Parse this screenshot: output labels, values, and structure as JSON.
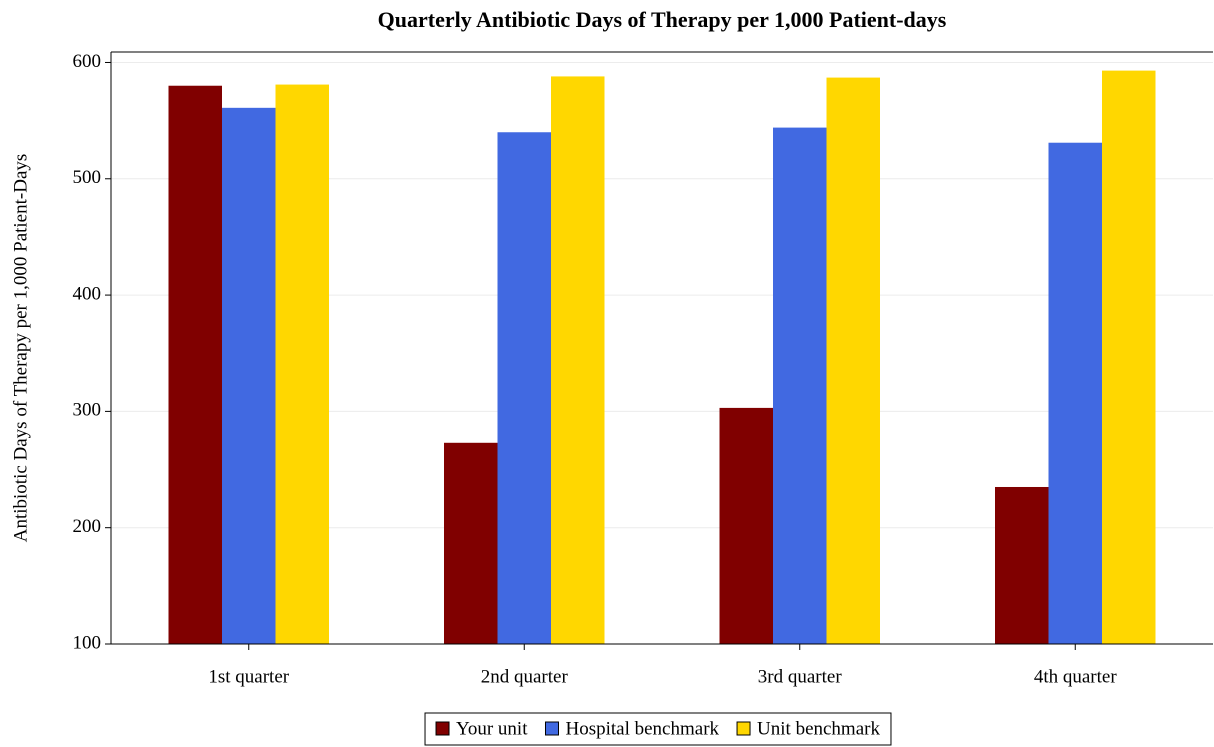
{
  "chart_data": {
    "type": "bar",
    "title": "Quarterly Antibiotic Days of Therapy per 1,000 Patient-days",
    "y_label": "Antibiotic Days of Therapy per 1,000 Patient-Days",
    "categories": [
      "1st quarter",
      "2nd quarter",
      "3rd quarter",
      "4th quarter"
    ],
    "series": [
      {
        "name": "Your unit",
        "color": "#800000",
        "values": [
          580,
          273,
          303,
          235
        ]
      },
      {
        "name": "Hospital benchmark",
        "color": "#4169e1",
        "values": [
          561,
          540,
          544,
          531
        ]
      },
      {
        "name": "Unit benchmark",
        "color": "#ffd700",
        "values": [
          581,
          588,
          587,
          593
        ]
      }
    ],
    "ylim": [
      100,
      609
    ],
    "yticks": [
      100,
      200,
      300,
      400,
      500,
      600
    ],
    "grid": true,
    "legend": "bottom"
  }
}
